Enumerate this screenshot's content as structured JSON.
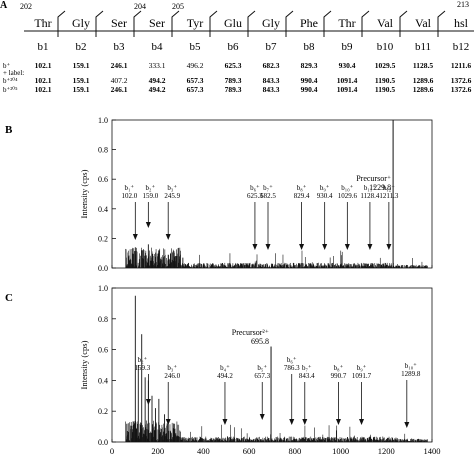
{
  "panel_a": {
    "label": "A",
    "residue_positions": [
      {
        "after_index": 0,
        "text": "202"
      },
      {
        "after_index": 3,
        "text": "204"
      },
      {
        "after_index": 4,
        "text": "205"
      },
      {
        "after_index": 11,
        "text": "213"
      }
    ],
    "residues": [
      "Thr",
      "Gly",
      "Ser",
      "Ser",
      "Tyr",
      "Glu",
      "Gly",
      "Phe",
      "Thr",
      "Val",
      "Val",
      "hsl"
    ],
    "ions": [
      "b1",
      "b2",
      "b3",
      "b4",
      "b5",
      "b6",
      "b7",
      "b8",
      "b9",
      "b10",
      "b11",
      "b12"
    ],
    "rows": [
      {
        "label": "b⁺",
        "values": [
          "102.1",
          "159.1",
          "246.1",
          "333.1",
          "496.2",
          "625.3",
          "682.3",
          "829.3",
          "930.4",
          "1029.5",
          "1128.5",
          "1211.6"
        ]
      },
      {
        "label": "+ label:",
        "values": []
      },
      {
        "label": "b⁺²⁰⁴",
        "values": [
          "102.1",
          "159.1",
          "407.2",
          "494.2",
          "657.3",
          "789.3",
          "843.3",
          "990.4",
          "1091.4",
          "1190.5",
          "1289.6",
          "1372.6"
        ]
      },
      {
        "label": "b⁺²⁰⁵",
        "values": [
          "102.1",
          "159.1",
          "246.1",
          "494.2",
          "657.3",
          "789.3",
          "843.3",
          "990.4",
          "1091.4",
          "1190.5",
          "1289.6",
          "1372.6"
        ]
      }
    ]
  },
  "chart_data": [
    {
      "panel": "B",
      "type": "bar",
      "ylabel": "Intensity (cps)",
      "ylim": [
        0,
        1.0
      ],
      "xlim": [
        0,
        1400
      ],
      "yticks": [
        "0.0",
        "0.2",
        "0.4",
        "0.6",
        "0.8",
        "1.0"
      ],
      "precursor": {
        "label": "Precursor⁺",
        "mz": "1229.8",
        "x": 1229.8,
        "y": 1.0
      },
      "annotations": [
        {
          "ion": "b₁⁺",
          "mz": "102.0",
          "x": 102.0
        },
        {
          "ion": "b₂⁺",
          "mz": "159.0",
          "x": 159.0
        },
        {
          "ion": "b₃⁺",
          "mz": "245.9",
          "x": 245.9
        },
        {
          "ion": "b₆⁺",
          "mz": "625.3",
          "x": 625.3
        },
        {
          "ion": "b₇⁺",
          "mz": "682.5",
          "x": 682.5
        },
        {
          "ion": "b₈⁺",
          "mz": "829.4",
          "x": 829.4
        },
        {
          "ion": "b₉⁺",
          "mz": "930.4",
          "x": 930.4
        },
        {
          "ion": "b₁₀⁺",
          "mz": "1029.6",
          "x": 1029.6
        },
        {
          "ion": "b₁₁⁺",
          "mz": "1128.4",
          "x": 1128.4
        },
        {
          "ion": "b₁₂⁺",
          "mz": "1211.3",
          "x": 1211.3
        }
      ]
    },
    {
      "panel": "C",
      "type": "bar",
      "ylabel": "Intensity (cps)",
      "ylim": [
        0,
        1.0
      ],
      "xlim": [
        0,
        1400
      ],
      "yticks": [
        "0.0",
        "0.2",
        "0.4",
        "0.6",
        "0.8",
        "1.0"
      ],
      "xticks": [
        "0",
        "200",
        "400",
        "600",
        "800",
        "1000",
        "1200",
        "1400"
      ],
      "precursor": {
        "label": "Precursor²⁺",
        "mz": "695.8",
        "x": 695.8,
        "y": 0.62
      },
      "annotations": [
        {
          "ion": "b₂⁺",
          "mz": "159.3",
          "x": 159.3
        },
        {
          "ion": "b₃⁺",
          "mz": "246.0",
          "x": 246.0
        },
        {
          "ion": "b₄⁺",
          "mz": "494.2",
          "x": 494.2
        },
        {
          "ion": "b₅⁺",
          "mz": "657.3",
          "x": 657.3
        },
        {
          "ion": "b₆⁺",
          "mz": "786.3",
          "x": 786.3
        },
        {
          "ion": "b₇⁺",
          "mz": "843.4",
          "x": 843.4
        },
        {
          "ion": "b₈⁺",
          "mz": "990.7",
          "x": 990.7
        },
        {
          "ion": "b₉⁺",
          "mz": "1091.7",
          "x": 1091.7
        },
        {
          "ion": "b₁₀⁺",
          "mz": "1289.8",
          "x": 1289.8
        }
      ]
    }
  ],
  "panel_labels": {
    "b": "B",
    "c": "C"
  }
}
